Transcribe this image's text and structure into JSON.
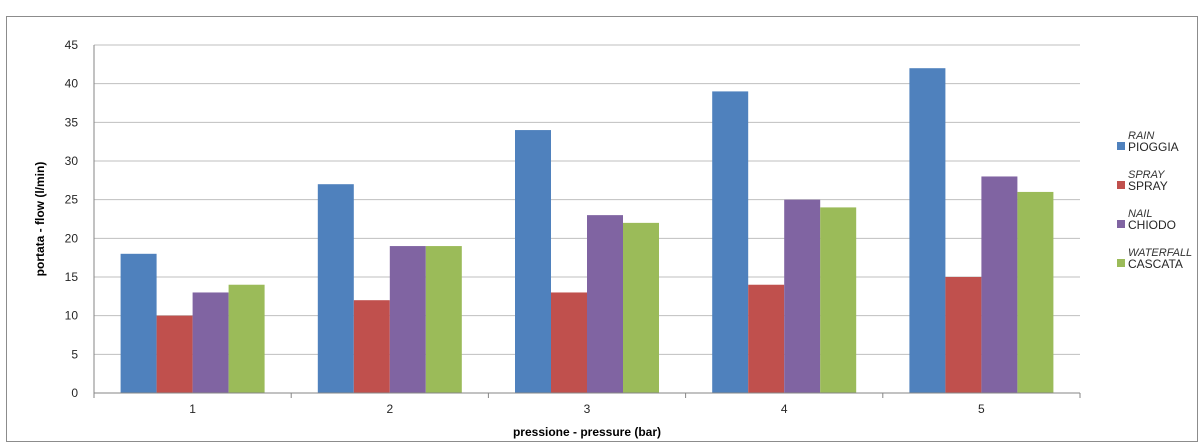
{
  "chart_data": {
    "type": "bar",
    "title": "",
    "xlabel": "pressione - pressure  (bar)",
    "ylabel": "portata - flow (l/min)",
    "ylim": [
      0,
      45
    ],
    "yticks": [
      0,
      5,
      10,
      15,
      20,
      25,
      30,
      35,
      40,
      45
    ],
    "categories": [
      "1",
      "2",
      "3",
      "4",
      "5"
    ],
    "grid": true,
    "legend_position": "right",
    "series": [
      {
        "name": "PIOGGIA",
        "name_en": "RAIN",
        "color": "#4f81bd",
        "values": [
          18,
          27,
          34,
          39,
          42
        ]
      },
      {
        "name": "SPRAY",
        "name_en": "SPRAY",
        "color": "#c0504d",
        "values": [
          10,
          12,
          13,
          14,
          15
        ]
      },
      {
        "name": "CHIODO",
        "name_en": "NAIL",
        "color": "#8064a2",
        "values": [
          13,
          19,
          23,
          25,
          28
        ]
      },
      {
        "name": "CASCATA",
        "name_en": "WATERFALL",
        "color": "#9bbb59",
        "values": [
          14,
          19,
          22,
          24,
          26
        ]
      }
    ]
  }
}
